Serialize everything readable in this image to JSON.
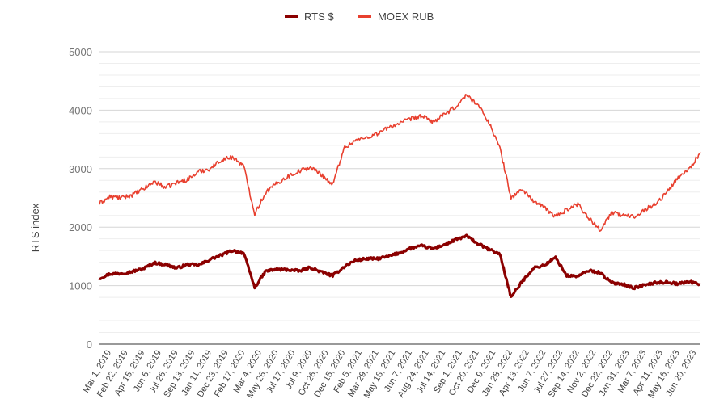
{
  "chart_data": {
    "type": "line",
    "title": "",
    "ylabel": "RTS index",
    "xlabel": "",
    "ylim": [
      0,
      5000
    ],
    "yticks": [
      0,
      1000,
      2000,
      3000,
      4000,
      5000
    ],
    "grid": true,
    "minor_grid": true,
    "legend_position": "top",
    "xtick_labels": [
      "Mar 1, 2019",
      "Feb 22, 2019",
      "Apr 15, 2019",
      "Jun 6, 2019",
      "Jul 26, 2019",
      "Sep 13, 2019",
      "Jan 11, 2019",
      "Dec 23, 2019",
      "Feb 17, 2020",
      "Mar 4, 2020",
      "May 26, 2020",
      "Jul 17, 2020",
      "Jul 9, 2020",
      "Oct 26, 2020",
      "Dec 15, 2020",
      "Feb 5, 2021",
      "Mar 29, 2021",
      "May 18, 2021",
      "Jun 7, 2021",
      "Aug 24, 2021",
      "Jul 14, 2021",
      "Sep 1, 2021",
      "Oct 20, 2021",
      "Dec 9, 2021",
      "Jan 28, 2022",
      "Apr 13, 2022",
      "Jun 7, 2022",
      "Jul 27, 2022",
      "Sep 14, 2022",
      "Nov 2, 2022",
      "Dec 22, 2022",
      "Jan 31, 2023",
      "Mar 7, 2023",
      "Apr 11, 2023",
      "May 16, 2023",
      "Jun 20, 2023"
    ],
    "x": [
      "2019-01",
      "2019-02",
      "2019-03",
      "2019-04",
      "2019-05",
      "2019-06",
      "2019-07",
      "2019-08",
      "2019-09",
      "2019-10",
      "2019-11",
      "2019-12",
      "2020-01",
      "2020-02",
      "2020-03",
      "2020-04",
      "2020-05",
      "2020-06",
      "2020-07",
      "2020-08",
      "2020-09",
      "2020-10",
      "2020-11",
      "2020-12",
      "2021-01",
      "2021-02",
      "2021-03",
      "2021-04",
      "2021-05",
      "2021-06",
      "2021-07",
      "2021-08",
      "2021-09",
      "2021-10",
      "2021-11",
      "2021-12",
      "2022-01",
      "2022-02",
      "2022-03",
      "2022-04",
      "2022-05",
      "2022-06",
      "2022-07",
      "2022-08",
      "2022-09",
      "2022-10",
      "2022-11",
      "2022-12",
      "2023-01",
      "2023-02",
      "2023-03",
      "2023-04",
      "2023-05",
      "2023-06",
      "2023-07"
    ],
    "series": [
      {
        "name": "RTS $",
        "color": "#8b0000",
        "values": [
          1120,
          1200,
          1210,
          1240,
          1290,
          1390,
          1360,
          1300,
          1360,
          1350,
          1450,
          1520,
          1600,
          1560,
          970,
          1250,
          1280,
          1270,
          1250,
          1310,
          1230,
          1170,
          1320,
          1430,
          1460,
          1460,
          1500,
          1560,
          1640,
          1680,
          1630,
          1700,
          1780,
          1850,
          1720,
          1620,
          1540,
          800,
          1070,
          1300,
          1350,
          1480,
          1170,
          1160,
          1260,
          1220,
          1050,
          1030,
          960,
          1010,
          1050,
          1060,
          1030,
          1070,
          1020
        ]
      },
      {
        "name": "MOEX RUB",
        "color": "#e8402f",
        "values": [
          2400,
          2520,
          2500,
          2550,
          2650,
          2780,
          2680,
          2760,
          2820,
          2950,
          3000,
          3150,
          3200,
          3050,
          2230,
          2600,
          2750,
          2870,
          2960,
          3020,
          2900,
          2720,
          3350,
          3480,
          3530,
          3600,
          3700,
          3780,
          3850,
          3900,
          3800,
          3920,
          4050,
          4260,
          4100,
          3800,
          3350,
          2500,
          2650,
          2450,
          2330,
          2180,
          2300,
          2400,
          2150,
          1950,
          2250,
          2200,
          2180,
          2300,
          2400,
          2600,
          2850,
          3000,
          3280
        ]
      }
    ]
  }
}
